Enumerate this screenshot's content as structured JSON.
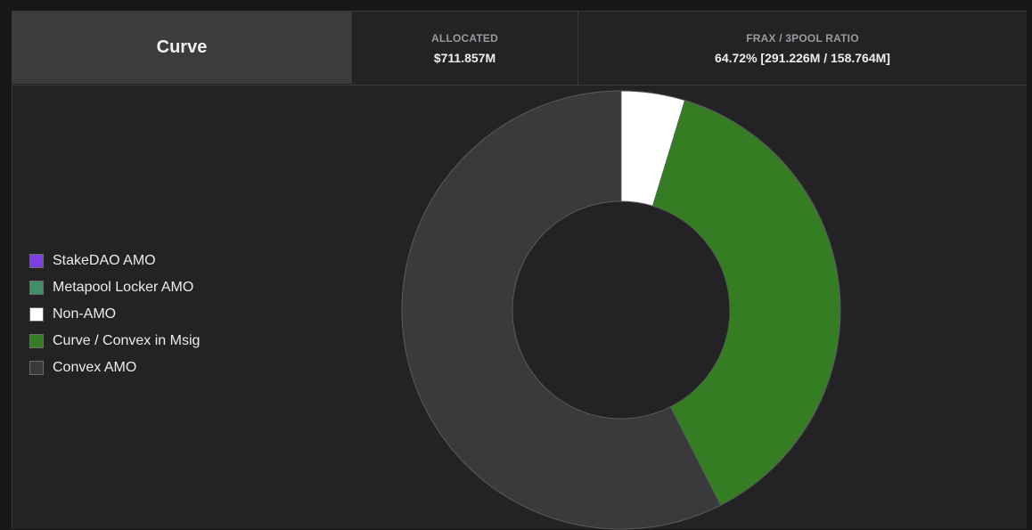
{
  "header": {
    "title": "Curve",
    "allocated_label": "ALLOCATED",
    "allocated_value": "$711.857M",
    "ratio_label": "FRAX / 3POOL RATIO",
    "ratio_value": "64.72% [291.226M / 158.764M]"
  },
  "chart_data": {
    "type": "pie",
    "donut": true,
    "legend_position": "left",
    "slices": [
      {
        "name": "StakeDAO AMO",
        "value": 0.0,
        "color": "#7b3fe4"
      },
      {
        "name": "Metapool Locker AMO",
        "value": 0.0,
        "color": "#3f8f6b"
      },
      {
        "name": "Non-AMO",
        "value": 4.7,
        "color": "#ffffff"
      },
      {
        "name": "Curve / Convex in Msig",
        "value": 37.8,
        "color": "#357d22"
      },
      {
        "name": "Convex AMO",
        "value": 57.5,
        "color": "#3a3a3c"
      }
    ]
  }
}
